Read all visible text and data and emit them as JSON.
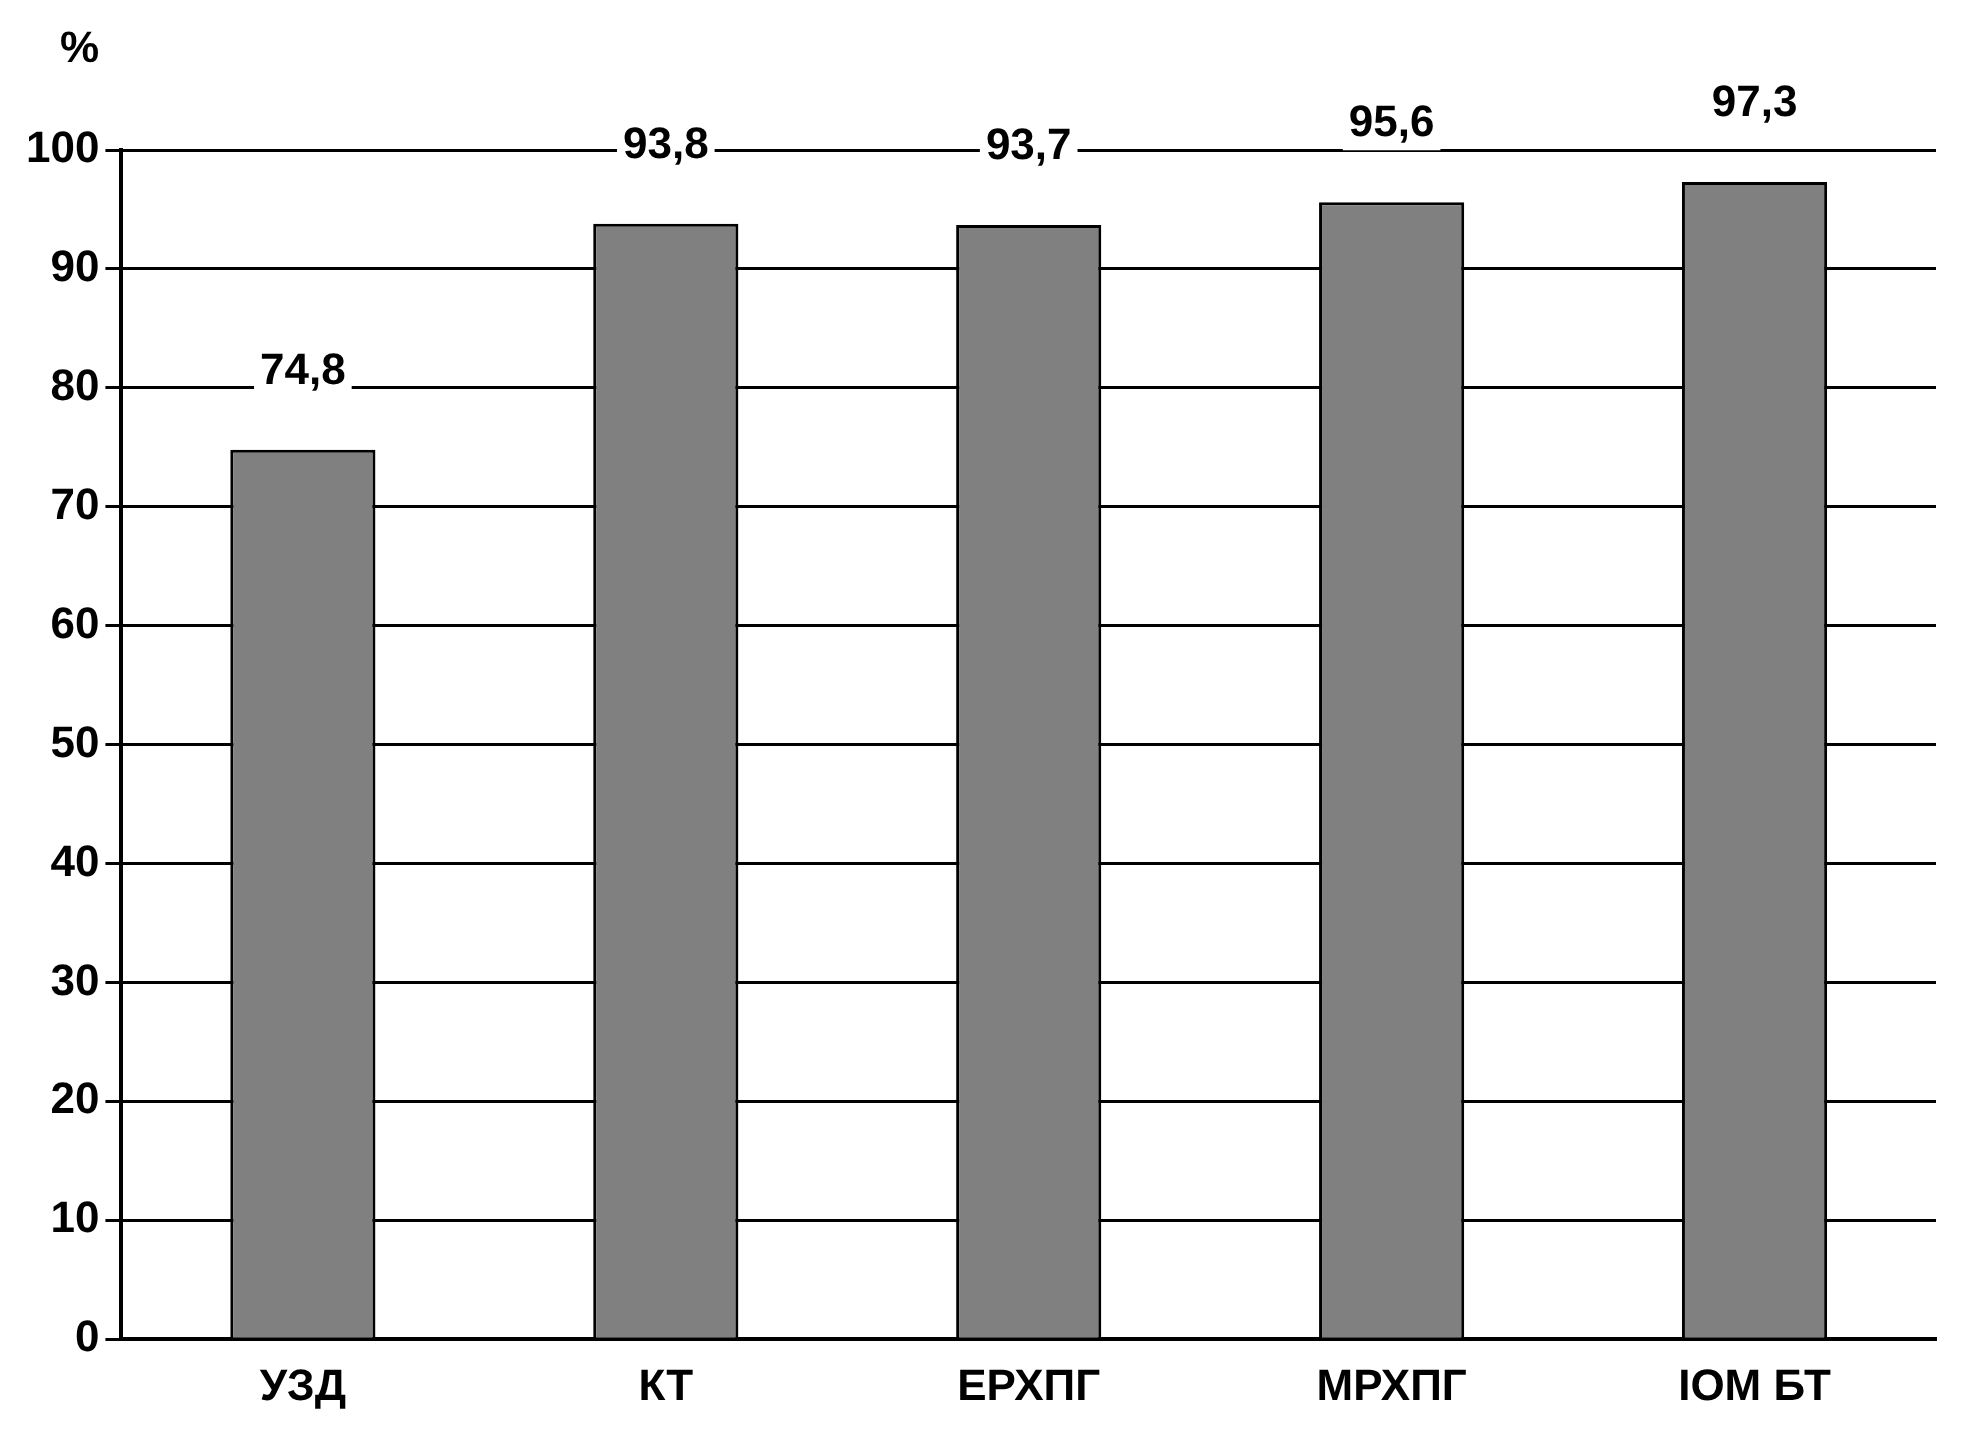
{
  "chart_data": {
    "type": "bar",
    "ylabel": "%",
    "categories": [
      "УЗД",
      "КТ",
      "ЕРХПГ",
      "МРХПГ",
      "ІОМ БТ"
    ],
    "values": [
      74.8,
      93.8,
      93.7,
      95.6,
      97.3
    ],
    "value_labels": [
      "74,8",
      "93,8",
      "93,7",
      "95,6",
      "97,3"
    ],
    "color": "#808080",
    "ylim": [
      0,
      100
    ],
    "yticks": [
      0,
      10,
      20,
      30,
      40,
      50,
      60,
      70,
      80,
      90,
      100
    ],
    "grid": "y",
    "legend": false
  }
}
